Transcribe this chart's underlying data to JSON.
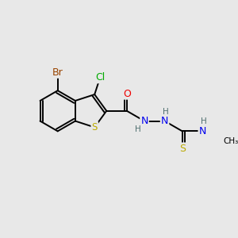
{
  "bg_color": "#e8e8e8",
  "bond_color": "#000000",
  "bond_width": 1.4,
  "atom_colors": {
    "C": "#000000",
    "H": "#507070",
    "N": "#0000ee",
    "O": "#ee0000",
    "S": "#bbaa00",
    "Br": "#994400",
    "Cl": "#00aa00"
  },
  "font_size": 8.5,
  "fig_size": [
    3.0,
    3.0
  ],
  "dpi": 100
}
